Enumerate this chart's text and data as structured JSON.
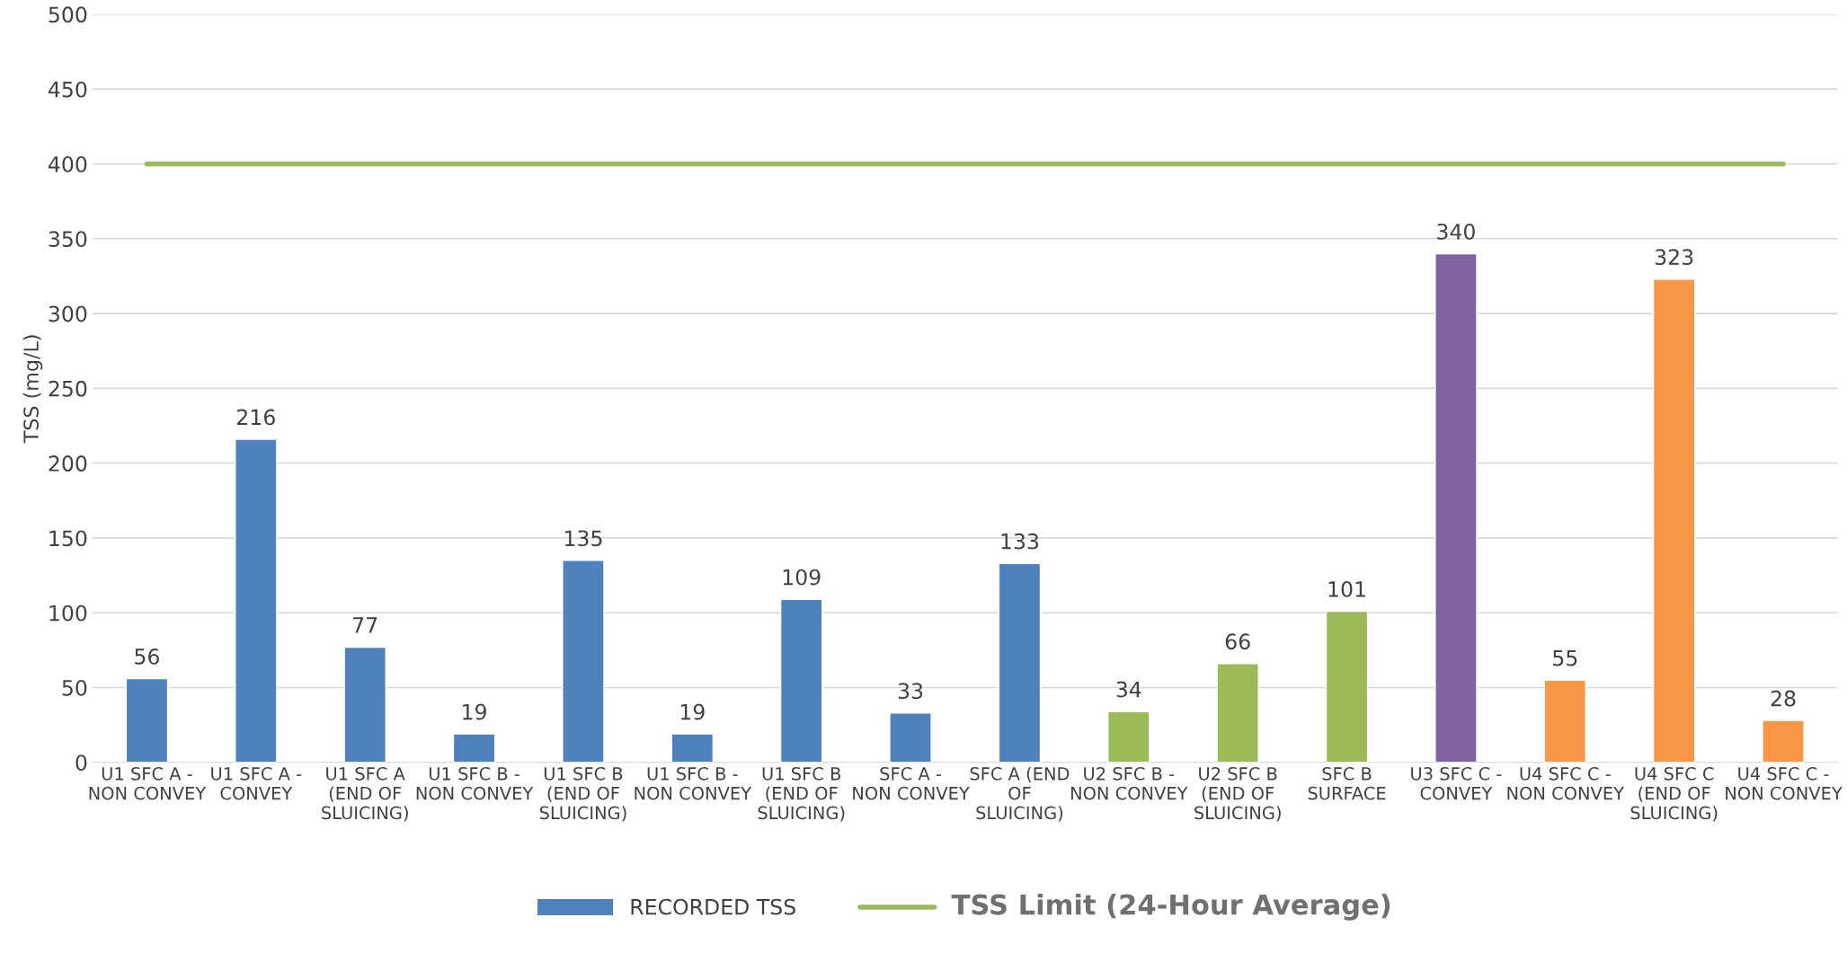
{
  "chart_data": {
    "type": "bar",
    "ylabel": "TSS (mg/L)",
    "categories": [
      "U1 SFC A - NON CONVEY",
      "U1 SFC A - CONVEY",
      "U1 SFC A (END OF SLUICING)",
      "U1 SFC B - NON CONVEY",
      "U1 SFC B (END OF SLUICING)",
      "U1 SFC B - NON CONVEY",
      "U1 SFC B (END OF SLUICING)",
      "SFC A - NON CONVEY",
      "SFC A (END OF SLUICING)",
      "U2 SFC B - NON CONVEY",
      "U2 SFC B (END OF SLUICING)",
      "SFC B SURFACE",
      "U3 SFC C - CONVEY",
      "U4 SFC C - NON CONVEY",
      "U4 SFC C (END OF SLUICING)",
      "U4 SFC C - NON CONVEY"
    ],
    "series": [
      {
        "name": "RECORDED TSS",
        "color": "#4f81bd",
        "values": [
          56,
          216,
          77,
          19,
          135,
          19,
          109,
          33,
          133,
          34,
          66,
          101,
          340,
          55,
          323,
          28
        ],
        "colors": [
          "#4f81bd",
          "#4f81bd",
          "#4f81bd",
          "#4f81bd",
          "#4f81bd",
          "#4f81bd",
          "#4f81bd",
          "#4f81bd",
          "#4f81bd",
          "#9bbb59",
          "#9bbb59",
          "#9bbb59",
          "#8064a2",
          "#f79646",
          "#f79646",
          "#f79646"
        ]
      }
    ],
    "ref_lines": [
      {
        "axis": "y",
        "value": 400,
        "label": "TSS Limit (24-Hour Average)",
        "color": "#9bbb59",
        "line_style": "solid"
      }
    ],
    "ylim": [
      0,
      500
    ],
    "yticks": [
      0,
      50,
      100,
      150,
      200,
      250,
      300,
      350,
      400,
      450,
      500
    ],
    "data_labels": true,
    "grid": "y",
    "legend": "bottom"
  }
}
